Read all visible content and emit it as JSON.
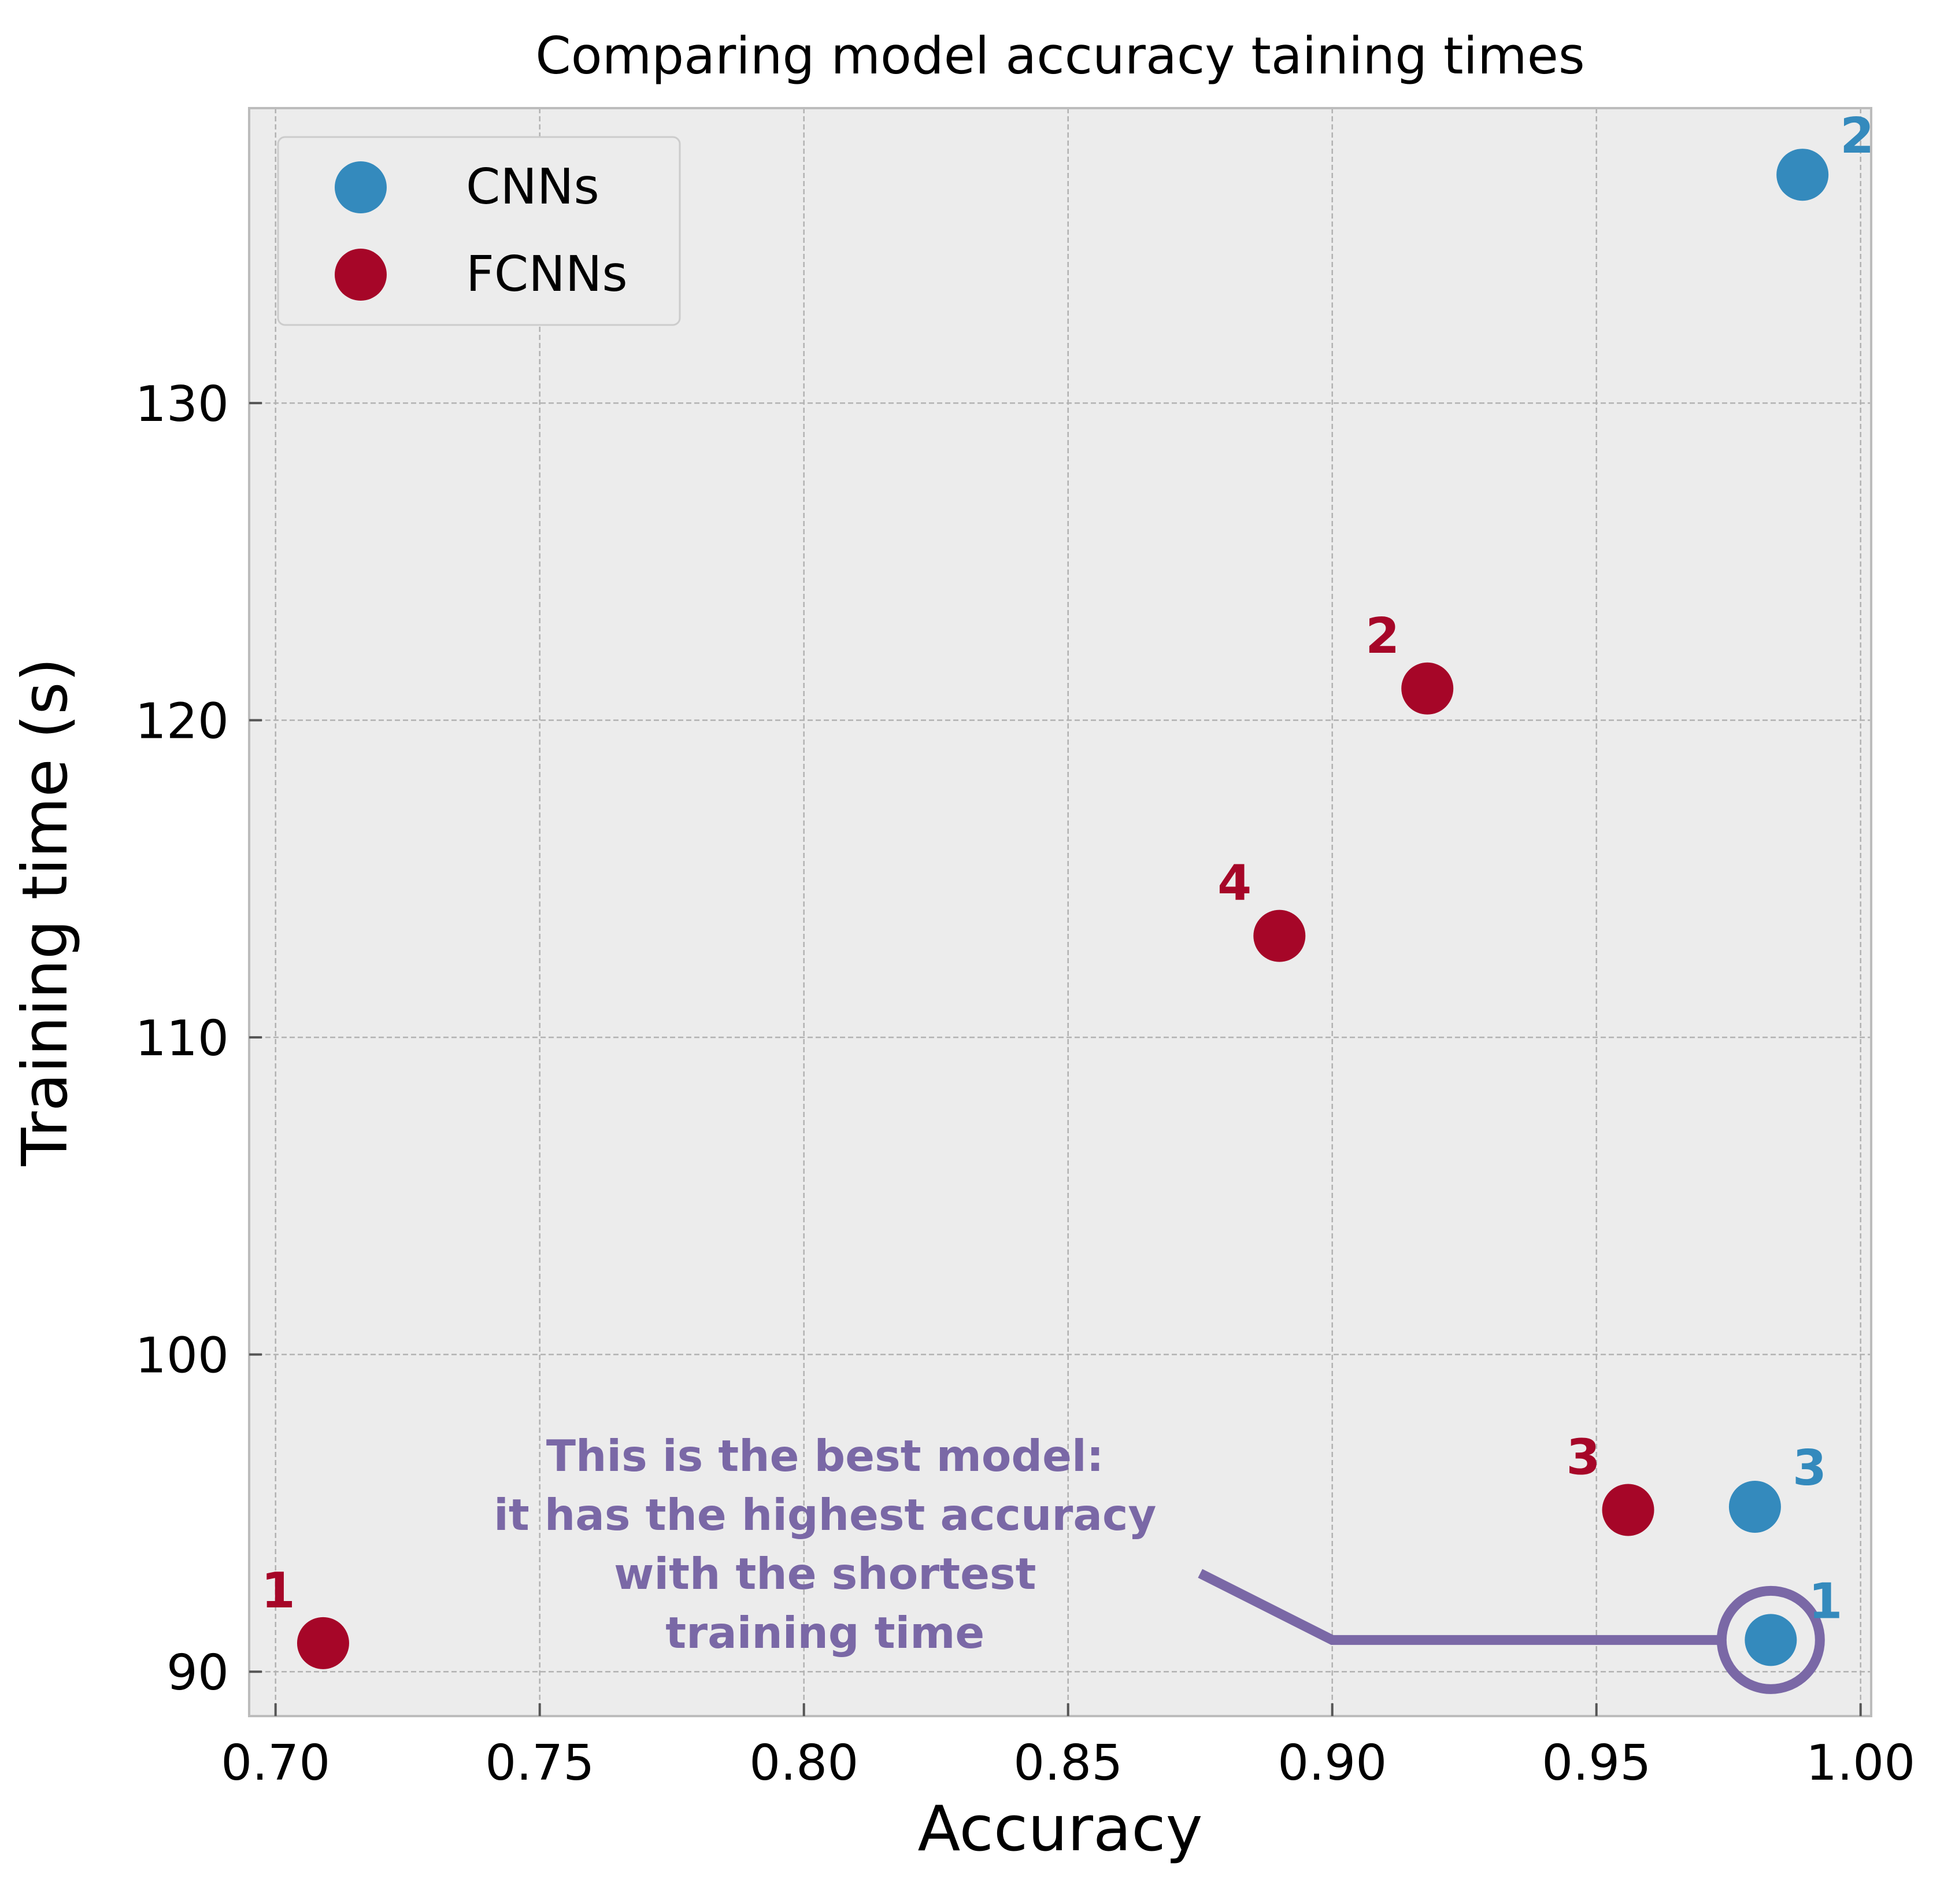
{
  "chart_data": {
    "type": "scatter",
    "title": "Comparing model accuracy taining times",
    "xlabel": "Accuracy",
    "ylabel": "Training time (s)",
    "xlim": [
      0.695,
      1.002
    ],
    "ylim": [
      88.6,
      139.3
    ],
    "xticks": [
      0.7,
      0.75,
      0.8,
      0.85,
      0.9,
      0.95,
      1.0
    ],
    "xtick_labels": [
      "0.70",
      "0.75",
      "0.80",
      "0.85",
      "0.90",
      "0.95",
      "1.00"
    ],
    "yticks": [
      90,
      100,
      110,
      120,
      130
    ],
    "ytick_labels": [
      "90",
      "100",
      "110",
      "120",
      "130"
    ],
    "grid": true,
    "legend_position": "top-left",
    "background_color": "#ececec",
    "series": [
      {
        "name": "CNNs",
        "color": "#348abd",
        "points": [
          {
            "x": 0.983,
            "y": 91.0,
            "label": "1"
          },
          {
            "x": 0.989,
            "y": 137.2,
            "label": "2"
          },
          {
            "x": 0.98,
            "y": 95.2,
            "label": "3"
          }
        ]
      },
      {
        "name": "FCNNs",
        "color": "#a60628",
        "points": [
          {
            "x": 0.709,
            "y": 90.9,
            "label": "1"
          },
          {
            "x": 0.918,
            "y": 121.0,
            "label": "2"
          },
          {
            "x": 0.956,
            "y": 95.1,
            "label": "3"
          },
          {
            "x": 0.89,
            "y": 113.2,
            "label": "4"
          }
        ]
      }
    ],
    "annotation": {
      "lines": [
        "This is the best model:",
        "it has the highest accuracy",
        "with the shortest",
        "training time"
      ],
      "color": "#7a68a6",
      "highlight_point": {
        "x": 0.983,
        "y": 91.0
      },
      "elbow_point": {
        "x": 0.9,
        "y": 91.0
      },
      "line_start": {
        "x": 0.875,
        "y": 93.1
      },
      "text_anchor": {
        "x": 0.804,
        "y": 94.0
      }
    }
  }
}
